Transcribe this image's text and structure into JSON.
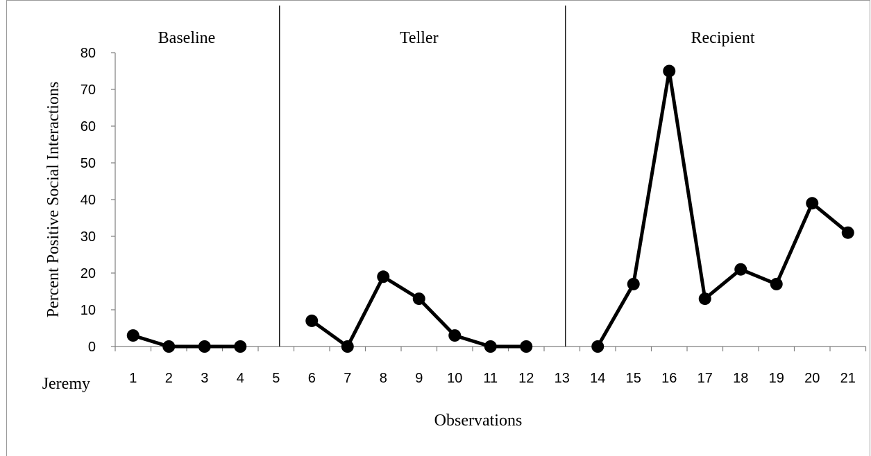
{
  "chart_data": {
    "type": "line",
    "title": "",
    "xlabel": "Observations",
    "ylabel": "Percent Positive Social Interactions",
    "participant": "Jeremy",
    "categories": [
      "1",
      "2",
      "3",
      "4",
      "5",
      "6",
      "7",
      "8",
      "9",
      "10",
      "11",
      "12",
      "13",
      "14",
      "15",
      "16",
      "17",
      "18",
      "19",
      "20",
      "21"
    ],
    "ylim": [
      0,
      80
    ],
    "yticks": [
      0,
      10,
      20,
      30,
      40,
      50,
      60,
      70,
      80
    ],
    "grid": false,
    "phases": [
      {
        "label": "Baseline",
        "start": 1,
        "end": 4
      },
      {
        "label": "Teller",
        "start": 6,
        "end": 12
      },
      {
        "label": "Recipient",
        "start": 14,
        "end": 21
      }
    ],
    "phase_change_lines_after": [
      5,
      13
    ],
    "series": [
      {
        "segments": [
          {
            "x": [
              1,
              2,
              3,
              4
            ],
            "y": [
              3,
              0,
              0,
              0
            ]
          },
          {
            "x": [
              6,
              7,
              8,
              9,
              10,
              11,
              12
            ],
            "y": [
              7,
              0,
              19,
              13,
              3,
              0,
              0
            ]
          },
          {
            "x": [
              14,
              15,
              16,
              17,
              18,
              19,
              20,
              21
            ],
            "y": [
              0,
              17,
              75,
              13,
              21,
              17,
              39,
              31
            ]
          }
        ],
        "color": "#000000"
      }
    ]
  }
}
